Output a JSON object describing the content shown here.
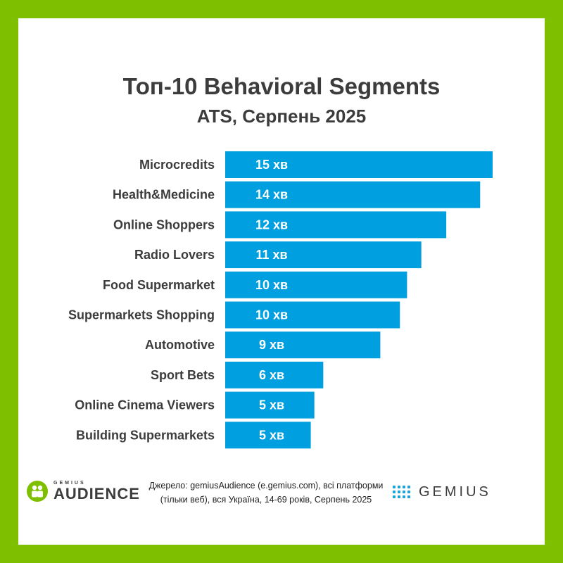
{
  "colors": {
    "background": "#7ec000",
    "card": "#ffffff",
    "bar": "#009fdf",
    "text": "#3c3c3c"
  },
  "header": {
    "title": "Топ-10 Behavioral Segments",
    "subtitle": "ATS, Серпень 2025"
  },
  "chart_data": {
    "type": "bar",
    "orientation": "horizontal",
    "title": "Топ-10 Behavioral Segments",
    "subtitle": "ATS, Серпень 2025",
    "categories": [
      "Microcredits",
      "Health&Medicine",
      "Online Shoppers",
      "Radio Lovers",
      "Food Supermarket",
      "Supermarkets Shopping",
      "Automotive",
      "Sport Bets",
      "Online Cinema Viewers",
      "Building Supermarkets"
    ],
    "values": [
      15,
      14.3,
      12.4,
      11,
      10.2,
      9.8,
      8.7,
      5.5,
      5,
      4.8
    ],
    "data_labels": [
      "15 хв",
      "14 хв",
      "12 хв",
      "11 хв",
      "10 хв",
      "10 хв",
      "9 хв",
      "6 хв",
      "5 хв",
      "5 хв"
    ],
    "xlim": [
      0,
      15
    ],
    "grid": false,
    "legend": "none"
  },
  "footer": {
    "left_logo_small": "GEMIUS",
    "left_logo_big": "AUDIENCE",
    "source_line1": "Джерело: gemiusAudience (e.gemius.com), всі платформи",
    "source_line2": "(тільки веб), вся Україна, 14-69 років, Серпень 2025",
    "right_logo": "GEMIUS",
    "left_logo_icon": "audience-people-icon",
    "right_logo_icon": "dot-grid-icon"
  }
}
